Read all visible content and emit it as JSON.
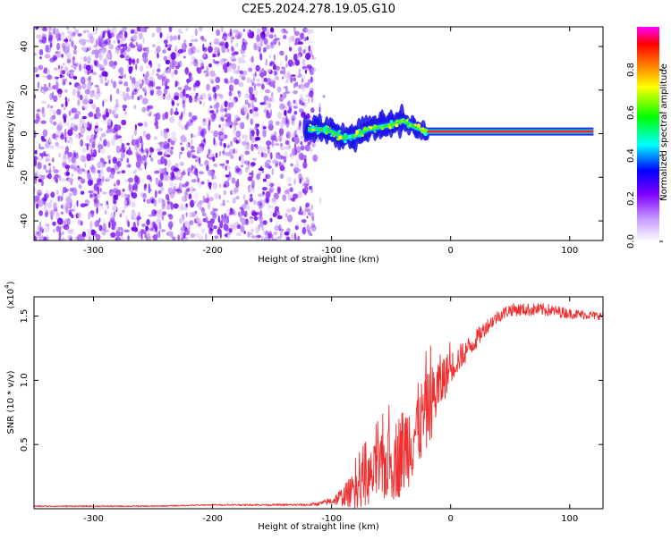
{
  "title": "C2E5.2024.278.19.05.G10",
  "chart_data": [
    {
      "type": "heatmap",
      "panel": "top",
      "xlabel": "Height of straight line (km)",
      "ylabel": "Frequency (Hz)",
      "xlim": [
        -350,
        128
      ],
      "ylim": [
        -49,
        49
      ],
      "xticks": [
        -300,
        -200,
        -100,
        0,
        100
      ],
      "yticks": [
        -40,
        -20,
        0,
        20,
        40
      ],
      "noise_region": {
        "x_from": -350,
        "x_to": -115,
        "y_from": -49,
        "y_to": 49
      },
      "signal_track": {
        "x": [
          -120,
          -110,
          -100,
          -90,
          -80,
          -70,
          -60,
          -50,
          -40,
          -30,
          -20,
          -10,
          0,
          20,
          40,
          60,
          80,
          100,
          120
        ],
        "y": [
          2,
          2,
          1,
          -2,
          -1,
          2,
          3,
          4,
          6,
          3,
          1,
          1,
          1,
          1,
          1,
          1,
          1,
          1,
          1
        ]
      },
      "colorbar": {
        "label": "Normalized spectral amplitude",
        "range": [
          0,
          1
        ],
        "ticks": [
          "0.0",
          "0.2",
          "0.4",
          "0.6",
          "0.8"
        ],
        "colors": [
          "#ffffff",
          "#c8a0ff",
          "#7f00ff",
          "#0000ff",
          "#00ffff",
          "#00ff00",
          "#ffff00",
          "#ff8000",
          "#ff0000",
          "#ff00ff"
        ]
      }
    },
    {
      "type": "line",
      "panel": "bottom",
      "xlabel": "Height of straight line (km)",
      "ylabel": "SNR (10 * v/v)",
      "scale_label": "(x10",
      "scale_exp": "4",
      "scale_close": ")",
      "xlim": [
        -350,
        128
      ],
      "ylim": [
        0,
        1.65
      ],
      "xticks": [
        -300,
        -200,
        -100,
        0,
        100
      ],
      "yticks": [
        "0.5",
        "1.0",
        "1.5"
      ],
      "ytick_values": [
        0.5,
        1.0,
        1.5
      ],
      "color": "#f03030",
      "series": [
        {
          "x": [
            -350,
            -300,
            -250,
            -200,
            -150,
            -120,
            -110,
            -100,
            -90,
            -80,
            -70,
            -60,
            -50,
            -40,
            -30,
            -20,
            -10,
            0,
            10,
            20,
            30,
            40,
            50,
            60,
            80,
            100,
            128
          ],
          "y": [
            0.02,
            0.02,
            0.02,
            0.03,
            0.03,
            0.03,
            0.04,
            0.06,
            0.1,
            0.15,
            0.22,
            0.3,
            0.35,
            0.45,
            0.6,
            0.75,
            0.95,
            1.1,
            1.2,
            1.3,
            1.42,
            1.5,
            1.55,
            1.55,
            1.55,
            1.52,
            1.5
          ],
          "spread": [
            0.005,
            0.005,
            0.005,
            0.005,
            0.008,
            0.01,
            0.015,
            0.03,
            0.08,
            0.15,
            0.2,
            0.25,
            0.3,
            0.35,
            0.35,
            0.3,
            0.25,
            0.12,
            0.1,
            0.08,
            0.06,
            0.05,
            0.05,
            0.05,
            0.05,
            0.04,
            0.03
          ]
        }
      ]
    }
  ]
}
